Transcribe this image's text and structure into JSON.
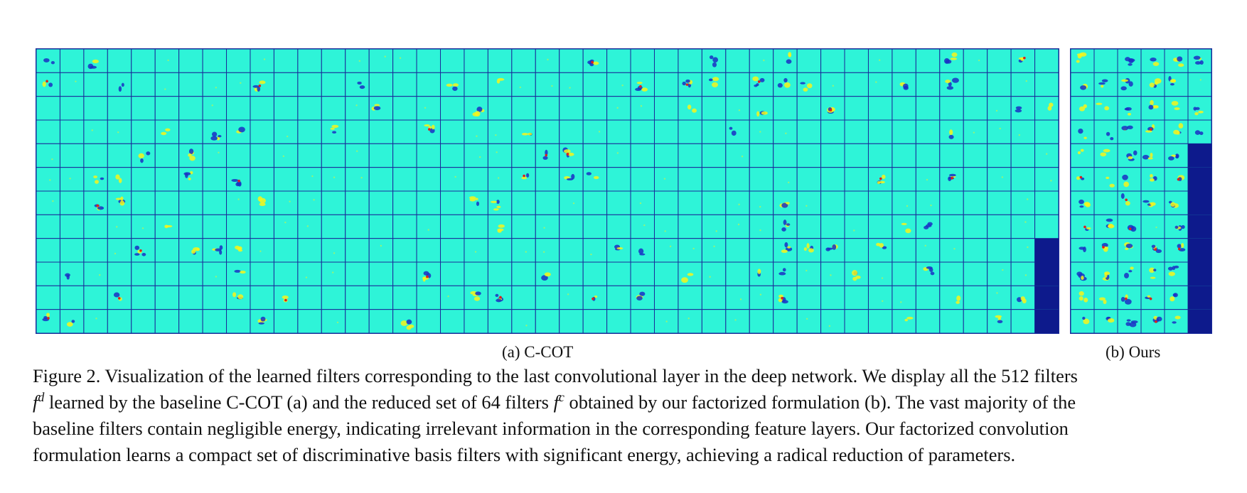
{
  "figure": {
    "panel_a": {
      "name": "C-COT filters",
      "cols": 43,
      "rows": 12,
      "filled_cells": 512,
      "colors": {
        "background": "#2ef4d8",
        "grid": "#1a2a9a",
        "empty": "#0d1a8c",
        "positive": "#f7f31a",
        "negative": "#1a2fc4",
        "strong": "#e0201a"
      },
      "subcaption": "(a) C-COT"
    },
    "panel_b": {
      "name": "Ours filters",
      "cols": 6,
      "rows": 12,
      "filled_cells": 64,
      "colors": {
        "background": "#2ef4d8",
        "grid": "#1a2a9a",
        "empty": "#0d1a8c",
        "positive": "#f7f31a",
        "negative": "#1a2fc4",
        "strong": "#e0201a"
      },
      "subcaption": "(b) Ours"
    },
    "caption": {
      "line1": "Figure 2. Visualization of the learned filters corresponding to the last convolutional layer in the deep network. We display all the 512 filters",
      "line2_var1": "f",
      "line2_sup1": "d",
      "line2_mid": " learned by the baseline C-COT (a) and the reduced set of 64 filters ",
      "line2_var2": "f",
      "line2_sup2": "c",
      "line2_end": " obtained by our factorized formulation (b). The vast majority of the",
      "line3": "baseline filters contain negligible energy, indicating irrelevant information in the corresponding feature layers. Our factorized convolution",
      "line4": "formulation learns a compact set of discriminative basis filters with significant energy, achieving a radical reduction of parameters."
    }
  }
}
